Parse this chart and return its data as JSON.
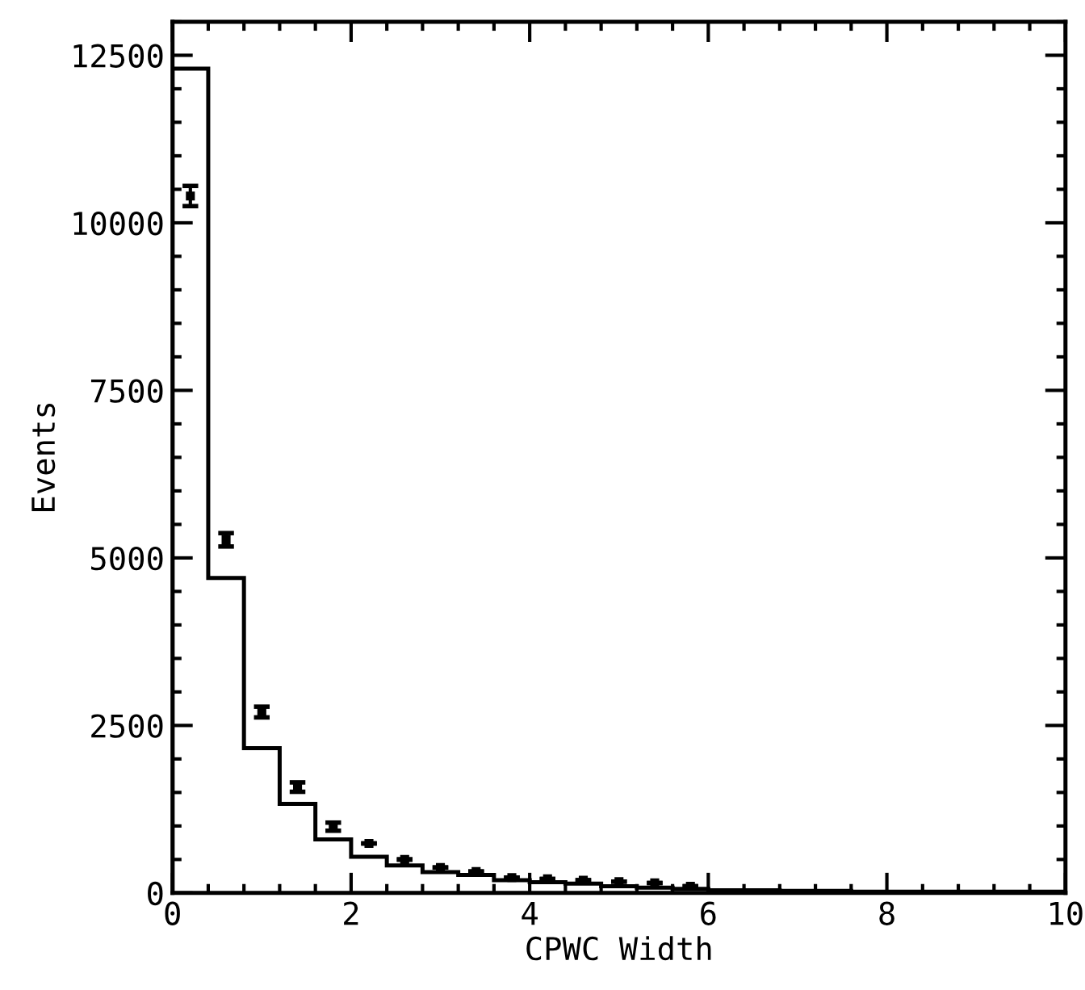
{
  "chart_data": {
    "type": "histogram",
    "xlabel": "CPWC Width",
    "ylabel": "Events",
    "xlim": [
      0,
      10
    ],
    "xticks": [
      0,
      2,
      4,
      6,
      8,
      10
    ],
    "ylim": [
      0,
      13000
    ],
    "yticks": [
      0,
      2500,
      5000,
      7500,
      10000,
      12500
    ],
    "legend": false,
    "marker": "square",
    "series": [
      {
        "color": "#000000",
        "bins": [
          0,
          0.4,
          0.8,
          1.2,
          1.6,
          2.0,
          2.4,
          2.8,
          3.2,
          3.6,
          4.0,
          4.4,
          4.8,
          5.2,
          5.6,
          6.0,
          6.4,
          6.8,
          7.2,
          7.6,
          8.0,
          8.4,
          8.8,
          9.2,
          9.6,
          10.0
        ],
        "values": [
          12300,
          4700,
          2160,
          1330,
          800,
          540,
          410,
          310,
          270,
          190,
          160,
          140,
          100,
          80,
          60,
          40,
          40,
          30,
          30,
          20,
          20,
          20,
          20,
          20,
          20
        ]
      },
      {
        "type": "scatter",
        "color": "#000000",
        "x": [
          0.2,
          0.6,
          1.0,
          1.4,
          1.8,
          2.2,
          2.6,
          3.0,
          3.4,
          3.8,
          4.2,
          4.6,
          5.0,
          5.4,
          5.8
        ],
        "values": [
          10400,
          5270,
          2700,
          1580,
          990,
          740,
          500,
          380,
          320,
          230,
          210,
          190,
          170,
          150,
          100
        ],
        "errors": [
          150,
          100,
          80,
          70,
          60,
          null,
          null,
          null,
          null,
          null,
          null,
          null,
          null,
          null,
          null
        ]
      }
    ]
  }
}
